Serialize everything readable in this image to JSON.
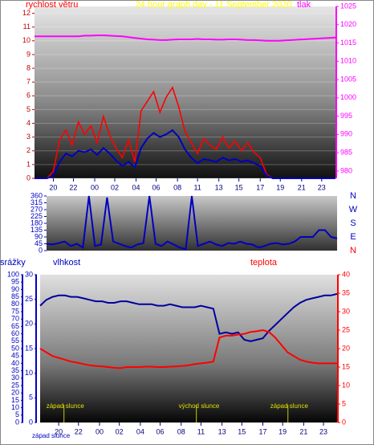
{
  "chart_data": [
    {
      "type": "line",
      "title": "24 hour graph day - 11 September 2020",
      "ylabel": "rychlost větru",
      "y2label": "tlak",
      "x": [
        0,
        0.5,
        1,
        1.5,
        2,
        2.5,
        3,
        3.5,
        4,
        4.5,
        5,
        5.5,
        6,
        6.5,
        7,
        7.5,
        8,
        8.5,
        9,
        9.5,
        10,
        10.5,
        11,
        11.5,
        12,
        12.5,
        13,
        13.5,
        14,
        14.5,
        15,
        15.5,
        16,
        16.5,
        17,
        17.5,
        18,
        18.5,
        19,
        19.5,
        20,
        20.5,
        21,
        21.5,
        22,
        22.5,
        23,
        23.5,
        24
      ],
      "xlim": [
        0,
        24
      ],
      "xticks": [
        {
          "value": 1.5,
          "label": "20"
        },
        {
          "value": 3.1,
          "label": "22"
        },
        {
          "value": 4.8,
          "label": "00"
        },
        {
          "value": 6.4,
          "label": "02"
        },
        {
          "value": 8.1,
          "label": "04"
        },
        {
          "value": 9.7,
          "label": "06"
        },
        {
          "value": 11.4,
          "label": "08"
        },
        {
          "value": 13.0,
          "label": "11"
        },
        {
          "value": 14.7,
          "label": "13"
        },
        {
          "value": 16.3,
          "label": "15"
        },
        {
          "value": 18.0,
          "label": "17"
        },
        {
          "value": 19.6,
          "label": "19"
        },
        {
          "value": 21.3,
          "label": "21"
        },
        {
          "value": 22.9,
          "label": "23"
        }
      ],
      "ylim": [
        0,
        12.5
      ],
      "yticks": [
        0,
        1,
        2,
        3,
        4,
        5,
        6,
        7,
        8,
        9,
        10,
        11,
        12
      ],
      "y2lim": [
        978,
        1025
      ],
      "y2ticks": [
        980,
        985,
        990,
        995,
        1000,
        1005,
        1010,
        1015,
        1020,
        1025
      ],
      "series": [
        {
          "color": "#ff0000",
          "values": [
            0,
            0,
            0,
            0.5,
            2.8,
            3.5,
            2.4,
            4.1,
            3.2,
            3.8,
            2.6,
            4.5,
            3.1,
            2.2,
            1.5,
            2.8,
            1.2,
            4.9,
            5.6,
            6.3,
            4.8,
            5.9,
            6.6,
            5.2,
            3.4,
            2.6,
            1.8,
            2.9,
            2.4,
            2.1,
            3.0,
            2.2,
            2.7,
            2.0,
            2.6,
            1.9,
            1.5,
            0.3,
            0,
            0,
            0,
            0,
            0,
            0,
            0,
            0,
            0,
            0,
            0
          ]
        },
        {
          "color": "#0000c0",
          "values": [
            0,
            0,
            0,
            0.2,
            1.2,
            1.8,
            1.6,
            2.0,
            1.9,
            2.1,
            1.7,
            2.2,
            1.8,
            1.3,
            0.9,
            1.2,
            0.8,
            2.2,
            2.9,
            3.3,
            3.0,
            3.2,
            3.5,
            3.0,
            2.1,
            1.5,
            1.1,
            1.4,
            1.3,
            1.2,
            1.5,
            1.3,
            1.4,
            1.2,
            1.3,
            1.1,
            0.9,
            0.2,
            0,
            0,
            0,
            0,
            0,
            0,
            0,
            0,
            0,
            0,
            0
          ]
        },
        {
          "color": "#ff00ff",
          "axis": "y2",
          "values": [
            1016.8,
            1016.8,
            1016.8,
            1016.8,
            1016.8,
            1016.8,
            1016.8,
            1016.8,
            1017,
            1017,
            1017.1,
            1017.1,
            1017,
            1016.9,
            1016.8,
            1016.6,
            1016.4,
            1016.2,
            1016,
            1015.9,
            1015.8,
            1015.8,
            1015.9,
            1016,
            1016,
            1016,
            1016.1,
            1016,
            1016,
            1015.9,
            1015.9,
            1016,
            1016,
            1015.9,
            1015.8,
            1015.8,
            1015.7,
            1015.6,
            1015.6,
            1015.6,
            1015.7,
            1015.8,
            1015.9,
            1016,
            1016.1,
            1016.2,
            1016.3,
            1016.4,
            1016.5
          ]
        }
      ]
    },
    {
      "type": "line",
      "x": [
        0,
        0.5,
        1,
        1.5,
        2,
        2.5,
        3,
        3.5,
        4,
        4.5,
        5,
        5.5,
        6,
        6.5,
        7,
        7.5,
        8,
        8.5,
        9,
        9.5,
        10,
        10.5,
        11,
        11.5,
        12,
        12.5,
        13,
        13.5,
        14,
        14.5,
        15,
        15.5,
        16,
        16.5,
        17,
        17.5,
        18,
        18.5,
        19,
        19.5,
        20,
        20.5,
        21,
        21.5,
        22,
        22.5,
        23,
        23.5,
        24
      ],
      "xlim": [
        0,
        24
      ],
      "ylim": [
        0,
        360
      ],
      "yticks": [
        0,
        45,
        90,
        135,
        180,
        225,
        270,
        315,
        360
      ],
      "compass": [
        {
          "value": 360,
          "label": "N",
          "color": "#0000c0"
        },
        {
          "value": 270,
          "label": "W",
          "color": "#0000c0"
        },
        {
          "value": 180,
          "label": "S",
          "color": "#0000c0"
        },
        {
          "value": 90,
          "label": "E",
          "color": "#0000c0"
        },
        {
          "value": 0,
          "label": "N",
          "color": "#ff0000"
        }
      ],
      "series": [
        {
          "color": "#0000c0",
          "values": [
            45,
            40,
            50,
            60,
            30,
            45,
            20,
            360,
            30,
            40,
            350,
            60,
            45,
            30,
            20,
            40,
            50,
            360,
            45,
            30,
            60,
            40,
            20,
            10,
            360,
            30,
            45,
            60,
            40,
            30,
            50,
            45,
            60,
            45,
            40,
            20,
            30,
            45,
            50,
            40,
            45,
            60,
            90,
            90,
            90,
            135,
            135,
            90,
            80
          ]
        }
      ]
    },
    {
      "type": "line",
      "ylabel": "srážky",
      "y3label": "vlhkost",
      "y2label": "teplota",
      "x": [
        0,
        0.5,
        1,
        1.5,
        2,
        2.5,
        3,
        3.5,
        4,
        4.5,
        5,
        5.5,
        6,
        6.5,
        7,
        7.5,
        8,
        8.5,
        9,
        9.5,
        10,
        10.5,
        11,
        11.5,
        12,
        12.5,
        13,
        13.5,
        14,
        14.5,
        15,
        15.5,
        16,
        16.5,
        17,
        17.5,
        18,
        18.5,
        19,
        19.5,
        20,
        20.5,
        21,
        21.5,
        22,
        22.5,
        23,
        23.5,
        24
      ],
      "xlim": [
        0,
        24
      ],
      "xticks": [
        {
          "value": 1.5,
          "label": "20"
        },
        {
          "value": 3.1,
          "label": "22"
        },
        {
          "value": 4.8,
          "label": "00"
        },
        {
          "value": 6.4,
          "label": "02"
        },
        {
          "value": 8.1,
          "label": "04"
        },
        {
          "value": 9.7,
          "label": "06"
        },
        {
          "value": 11.4,
          "label": "08"
        },
        {
          "value": 13.0,
          "label": "11"
        },
        {
          "value": 14.7,
          "label": "13"
        },
        {
          "value": 16.3,
          "label": "15"
        },
        {
          "value": 18.0,
          "label": "17"
        },
        {
          "value": 19.6,
          "label": "19"
        },
        {
          "value": 21.3,
          "label": "21"
        },
        {
          "value": 22.9,
          "label": "23"
        }
      ],
      "ylim": [
        0,
        100
      ],
      "yticks": [
        0,
        5,
        10,
        15,
        20,
        25,
        30,
        35,
        40,
        45,
        50,
        55,
        60,
        65,
        70,
        75,
        80,
        85,
        90,
        95,
        100
      ],
      "y3lim": [
        0,
        30
      ],
      "y3ticks": [
        0,
        5,
        10,
        15,
        20,
        25,
        30
      ],
      "y2lim": [
        0,
        40
      ],
      "y2ticks": [
        0,
        5,
        10,
        15,
        20,
        25,
        30,
        35,
        40
      ],
      "annotations": [
        {
          "text": "západ slunce",
          "x": 0.5
        },
        {
          "text": "východ slunce",
          "x": 11.2
        },
        {
          "text": "západ slunce",
          "x": 18.6
        }
      ],
      "footer": "západ slunce",
      "series": [
        {
          "color": "#0000a0",
          "values": [
            79,
            83,
            85,
            86,
            86,
            85,
            85,
            84,
            83,
            82,
            82,
            81,
            81,
            82,
            82,
            81,
            80,
            80,
            80,
            79,
            79,
            80,
            79,
            78,
            78,
            78,
            79,
            78,
            77,
            60,
            61,
            60,
            61,
            56,
            55,
            56,
            57,
            62,
            66,
            70,
            74,
            78,
            81,
            83,
            84,
            85,
            86,
            86,
            87
          ]
        },
        {
          "color": "#ff0000",
          "axis": "y2",
          "values": [
            20,
            19,
            18,
            17.5,
            17,
            16.5,
            16.2,
            15.8,
            15.5,
            15.3,
            15.2,
            15,
            14.8,
            14.7,
            15,
            15,
            15,
            15.1,
            15.1,
            15,
            15,
            15.1,
            15.2,
            15.3,
            15.5,
            15.8,
            16,
            16.2,
            16.5,
            23,
            23.5,
            23.5,
            23.8,
            24,
            24.5,
            24.7,
            25,
            24.5,
            23,
            21,
            19,
            18,
            17,
            16.5,
            16.2,
            16,
            16,
            16,
            16
          ]
        }
      ]
    }
  ]
}
